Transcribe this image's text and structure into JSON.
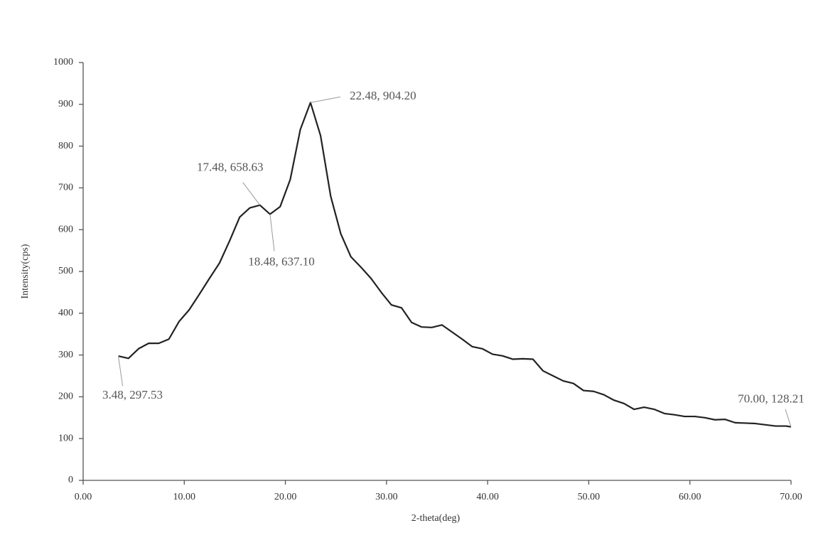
{
  "chart_data": {
    "type": "line",
    "xlabel": "2-theta(deg)",
    "ylabel": "Intensity(cps)",
    "x": [
      3.48,
      4.48,
      5.48,
      6.48,
      7.48,
      8.48,
      9.48,
      10.48,
      11.48,
      12.48,
      13.48,
      14.48,
      15.48,
      16.48,
      17.48,
      18.48,
      19.48,
      20.48,
      21.48,
      22.48,
      23.48,
      24.48,
      25.48,
      26.48,
      27.48,
      28.48,
      29.48,
      30.48,
      31.48,
      32.48,
      33.48,
      34.48,
      35.48,
      36.48,
      37.48,
      38.48,
      39.48,
      40.48,
      41.48,
      42.48,
      43.48,
      44.48,
      45.48,
      46.48,
      47.48,
      48.48,
      49.48,
      50.48,
      51.48,
      52.48,
      53.48,
      54.48,
      55.48,
      56.48,
      57.48,
      58.48,
      59.48,
      60.48,
      61.48,
      62.48,
      63.48,
      64.48,
      65.48,
      66.48,
      67.48,
      68.48,
      69.48,
      70.0
    ],
    "series": [
      {
        "color": "#222222",
        "values": [
          297.53,
          292,
          315,
          328,
          328,
          338,
          380,
          408,
          445,
          483,
          520,
          573,
          630,
          652,
          658.63,
          637.1,
          655,
          720,
          840,
          904.2,
          825,
          680,
          590,
          535,
          510,
          483,
          450,
          420,
          413,
          378,
          367,
          366,
          372,
          355,
          338,
          320,
          315,
          302,
          298,
          290,
          291,
          290,
          262,
          250,
          238,
          232,
          215,
          213,
          205,
          192,
          184,
          170,
          175,
          170,
          160,
          157,
          153,
          153,
          150,
          145,
          146,
          138,
          137,
          136,
          133,
          130,
          130,
          128.21
        ]
      }
    ],
    "annotations": [
      {
        "x": 3.48,
        "y": 297.53,
        "label": "3.48, 297.53"
      },
      {
        "x": 17.48,
        "y": 658.63,
        "label": "17.48, 658.63"
      },
      {
        "x": 18.48,
        "y": 637.1,
        "label": "18.48, 637.10"
      },
      {
        "x": 22.48,
        "y": 904.2,
        "label": "22.48, 904.20"
      },
      {
        "x": 70.0,
        "y": 128.21,
        "label": "70.00, 128.21"
      }
    ],
    "xlim": [
      0,
      70
    ],
    "xticks": [
      {
        "value": 0,
        "label": "0.00"
      },
      {
        "value": 10,
        "label": "10.00"
      },
      {
        "value": 20,
        "label": "20.00"
      },
      {
        "value": 30,
        "label": "30.00"
      },
      {
        "value": 40,
        "label": "40.00"
      },
      {
        "value": 50,
        "label": "50.00"
      },
      {
        "value": 60,
        "label": "60.00"
      },
      {
        "value": 70,
        "label": "70.00"
      }
    ],
    "ylim": [
      0,
      1000
    ],
    "yticks": [
      0,
      100,
      200,
      300,
      400,
      500,
      600,
      700,
      800,
      900,
      1000
    ],
    "grid": false
  }
}
